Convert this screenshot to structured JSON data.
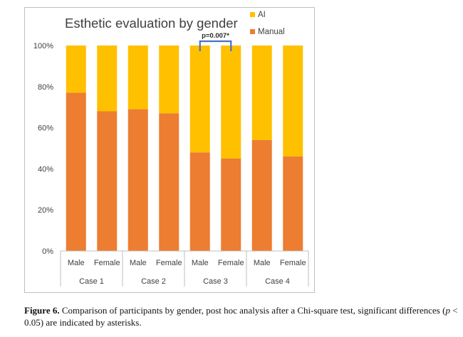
{
  "chart_data": {
    "type": "bar",
    "stacked": true,
    "title": "Esthetic evaluation by gender",
    "xlabel": "",
    "ylabel": "",
    "ylim": [
      0,
      100
    ],
    "yticks": [
      "0%",
      "20%",
      "40%",
      "60%",
      "80%",
      "100%"
    ],
    "groups": [
      "Case 1",
      "Case 2",
      "Case 3",
      "Case 4"
    ],
    "categories": [
      "Male",
      "Female",
      "Male",
      "Female",
      "Male",
      "Female",
      "Male",
      "Female"
    ],
    "series": [
      {
        "name": "Manual",
        "values": [
          77,
          68,
          69,
          67,
          48,
          45,
          54,
          46
        ],
        "color": "#ed7d31"
      },
      {
        "name": "AI",
        "values": [
          23,
          32,
          31,
          33,
          52,
          55,
          46,
          54
        ],
        "color": "#ffc000"
      }
    ],
    "legend_position": "top-right",
    "legend": [
      "AI",
      "Manual"
    ],
    "annotation": {
      "text": "p=0.007*",
      "between_bars": [
        4,
        5
      ]
    },
    "grid": false
  },
  "caption": {
    "label": "Figure 6.",
    "text_1": "Comparison of participants by gender, post hoc analysis after a Chi-square test, significant differences (",
    "p": "p",
    "text_2": " < 0.05) are indicated by asterisks."
  }
}
